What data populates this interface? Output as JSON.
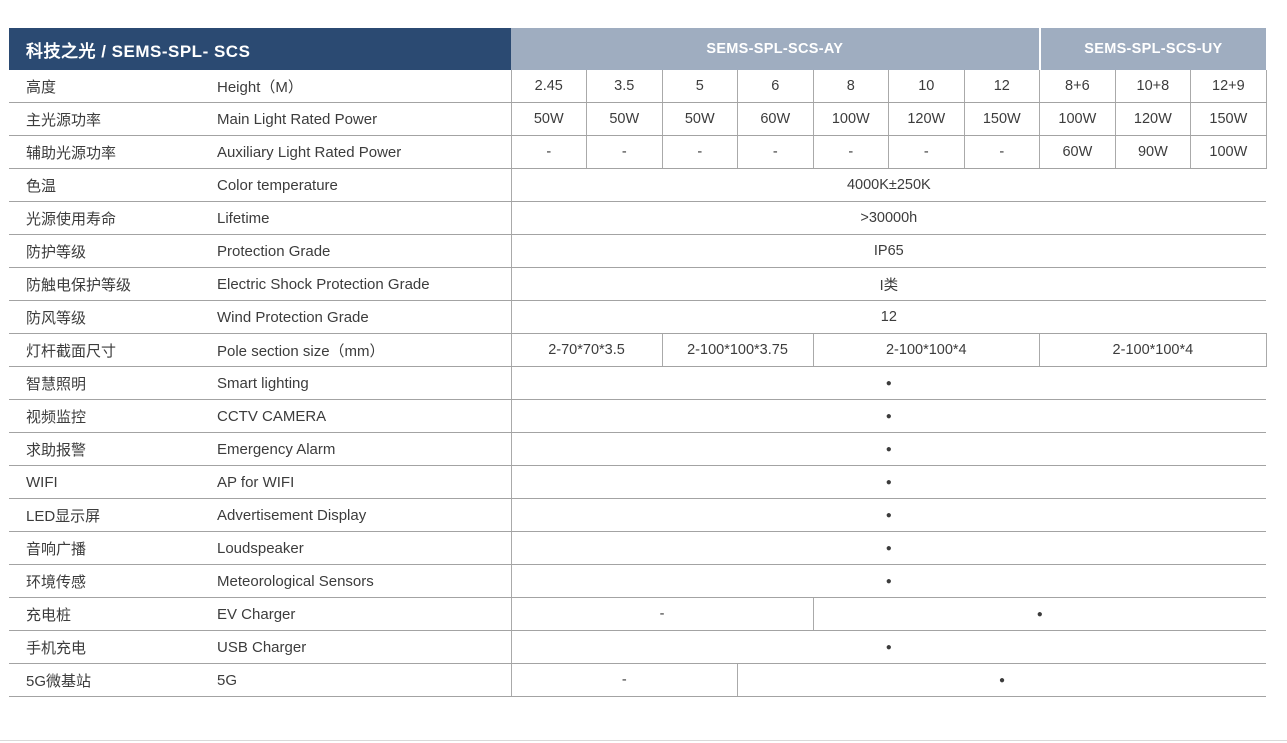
{
  "colors": {
    "navy_header": "#2b4a72",
    "grayblue_header": "#9fadc0",
    "text": "#3c3c3c",
    "row_line": "#a3a3a3",
    "cell_line": "#aaaaaa"
  },
  "header": {
    "title": "科技之光 / SEMS-SPL- SCS",
    "group_ay": "SEMS-SPL-SCS-AY",
    "group_uy": "SEMS-SPL-SCS-UY"
  },
  "symbols": {
    "included_dot": "●",
    "not_available_dash": "-"
  },
  "rows": [
    {
      "zh": "高度",
      "en": "Height（M）",
      "cells": [
        "2.45",
        "3.5",
        "5",
        "6",
        "8",
        "10",
        "12",
        "8+6",
        "10+8",
        "12+9"
      ]
    },
    {
      "zh": "主光源功率",
      "en": "Main Light Rated Power",
      "cells": [
        "50W",
        "50W",
        "50W",
        "60W",
        "100W",
        "120W",
        "150W",
        "100W",
        "120W",
        "150W"
      ]
    },
    {
      "zh": "辅助光源功率",
      "en": "Auxiliary Light Rated Power",
      "cells": [
        "-",
        "-",
        "-",
        "-",
        "-",
        "-",
        "-",
        "60W",
        "90W",
        "100W"
      ]
    },
    {
      "zh": "色温",
      "en": "Color temperature",
      "cells": [
        "4000K±250K"
      ]
    },
    {
      "zh": "光源使用寿命",
      "en": "Lifetime",
      "cells": [
        ">30000h"
      ]
    },
    {
      "zh": "防护等级",
      "en": "Protection Grade",
      "cells": [
        "IP65"
      ]
    },
    {
      "zh": "防触电保护等级",
      "en": "Electric Shock Protection Grade",
      "cells": [
        "I类"
      ]
    },
    {
      "zh": "防风等级",
      "en": "Wind Protection Grade",
      "cells": [
        "12"
      ]
    },
    {
      "zh": "灯杆截面尺寸",
      "en": "Pole section size（mm）",
      "cells": [
        "2-70*70*3.5",
        "2-100*100*3.75",
        "2-100*100*4",
        "2-100*100*4"
      ]
    },
    {
      "zh": "智慧照明",
      "en": "Smart lighting",
      "cells": [
        "●"
      ]
    },
    {
      "zh": "视频监控",
      "en": "CCTV CAMERA",
      "cells": [
        "●"
      ]
    },
    {
      "zh": "求助报警",
      "en": "Emergency Alarm",
      "cells": [
        "●"
      ]
    },
    {
      "zh": "WIFI",
      "en": "AP for WIFI",
      "cells": [
        "●"
      ]
    },
    {
      "zh": "LED显示屏",
      "en": "Advertisement Display",
      "cells": [
        "●"
      ]
    },
    {
      "zh": "音响广播",
      "en": "Loudspeaker",
      "cells": [
        "●"
      ]
    },
    {
      "zh": "环境传感",
      "en": "Meteorological Sensors",
      "cells": [
        "●"
      ]
    },
    {
      "zh": "充电桩",
      "en": "EV Charger",
      "cells": [
        "-",
        "●"
      ]
    },
    {
      "zh": "手机充电",
      "en": "USB Charger",
      "cells": [
        "●"
      ]
    },
    {
      "zh": "5G微基站",
      "en": "5G",
      "cells": [
        "-",
        "●"
      ]
    }
  ]
}
